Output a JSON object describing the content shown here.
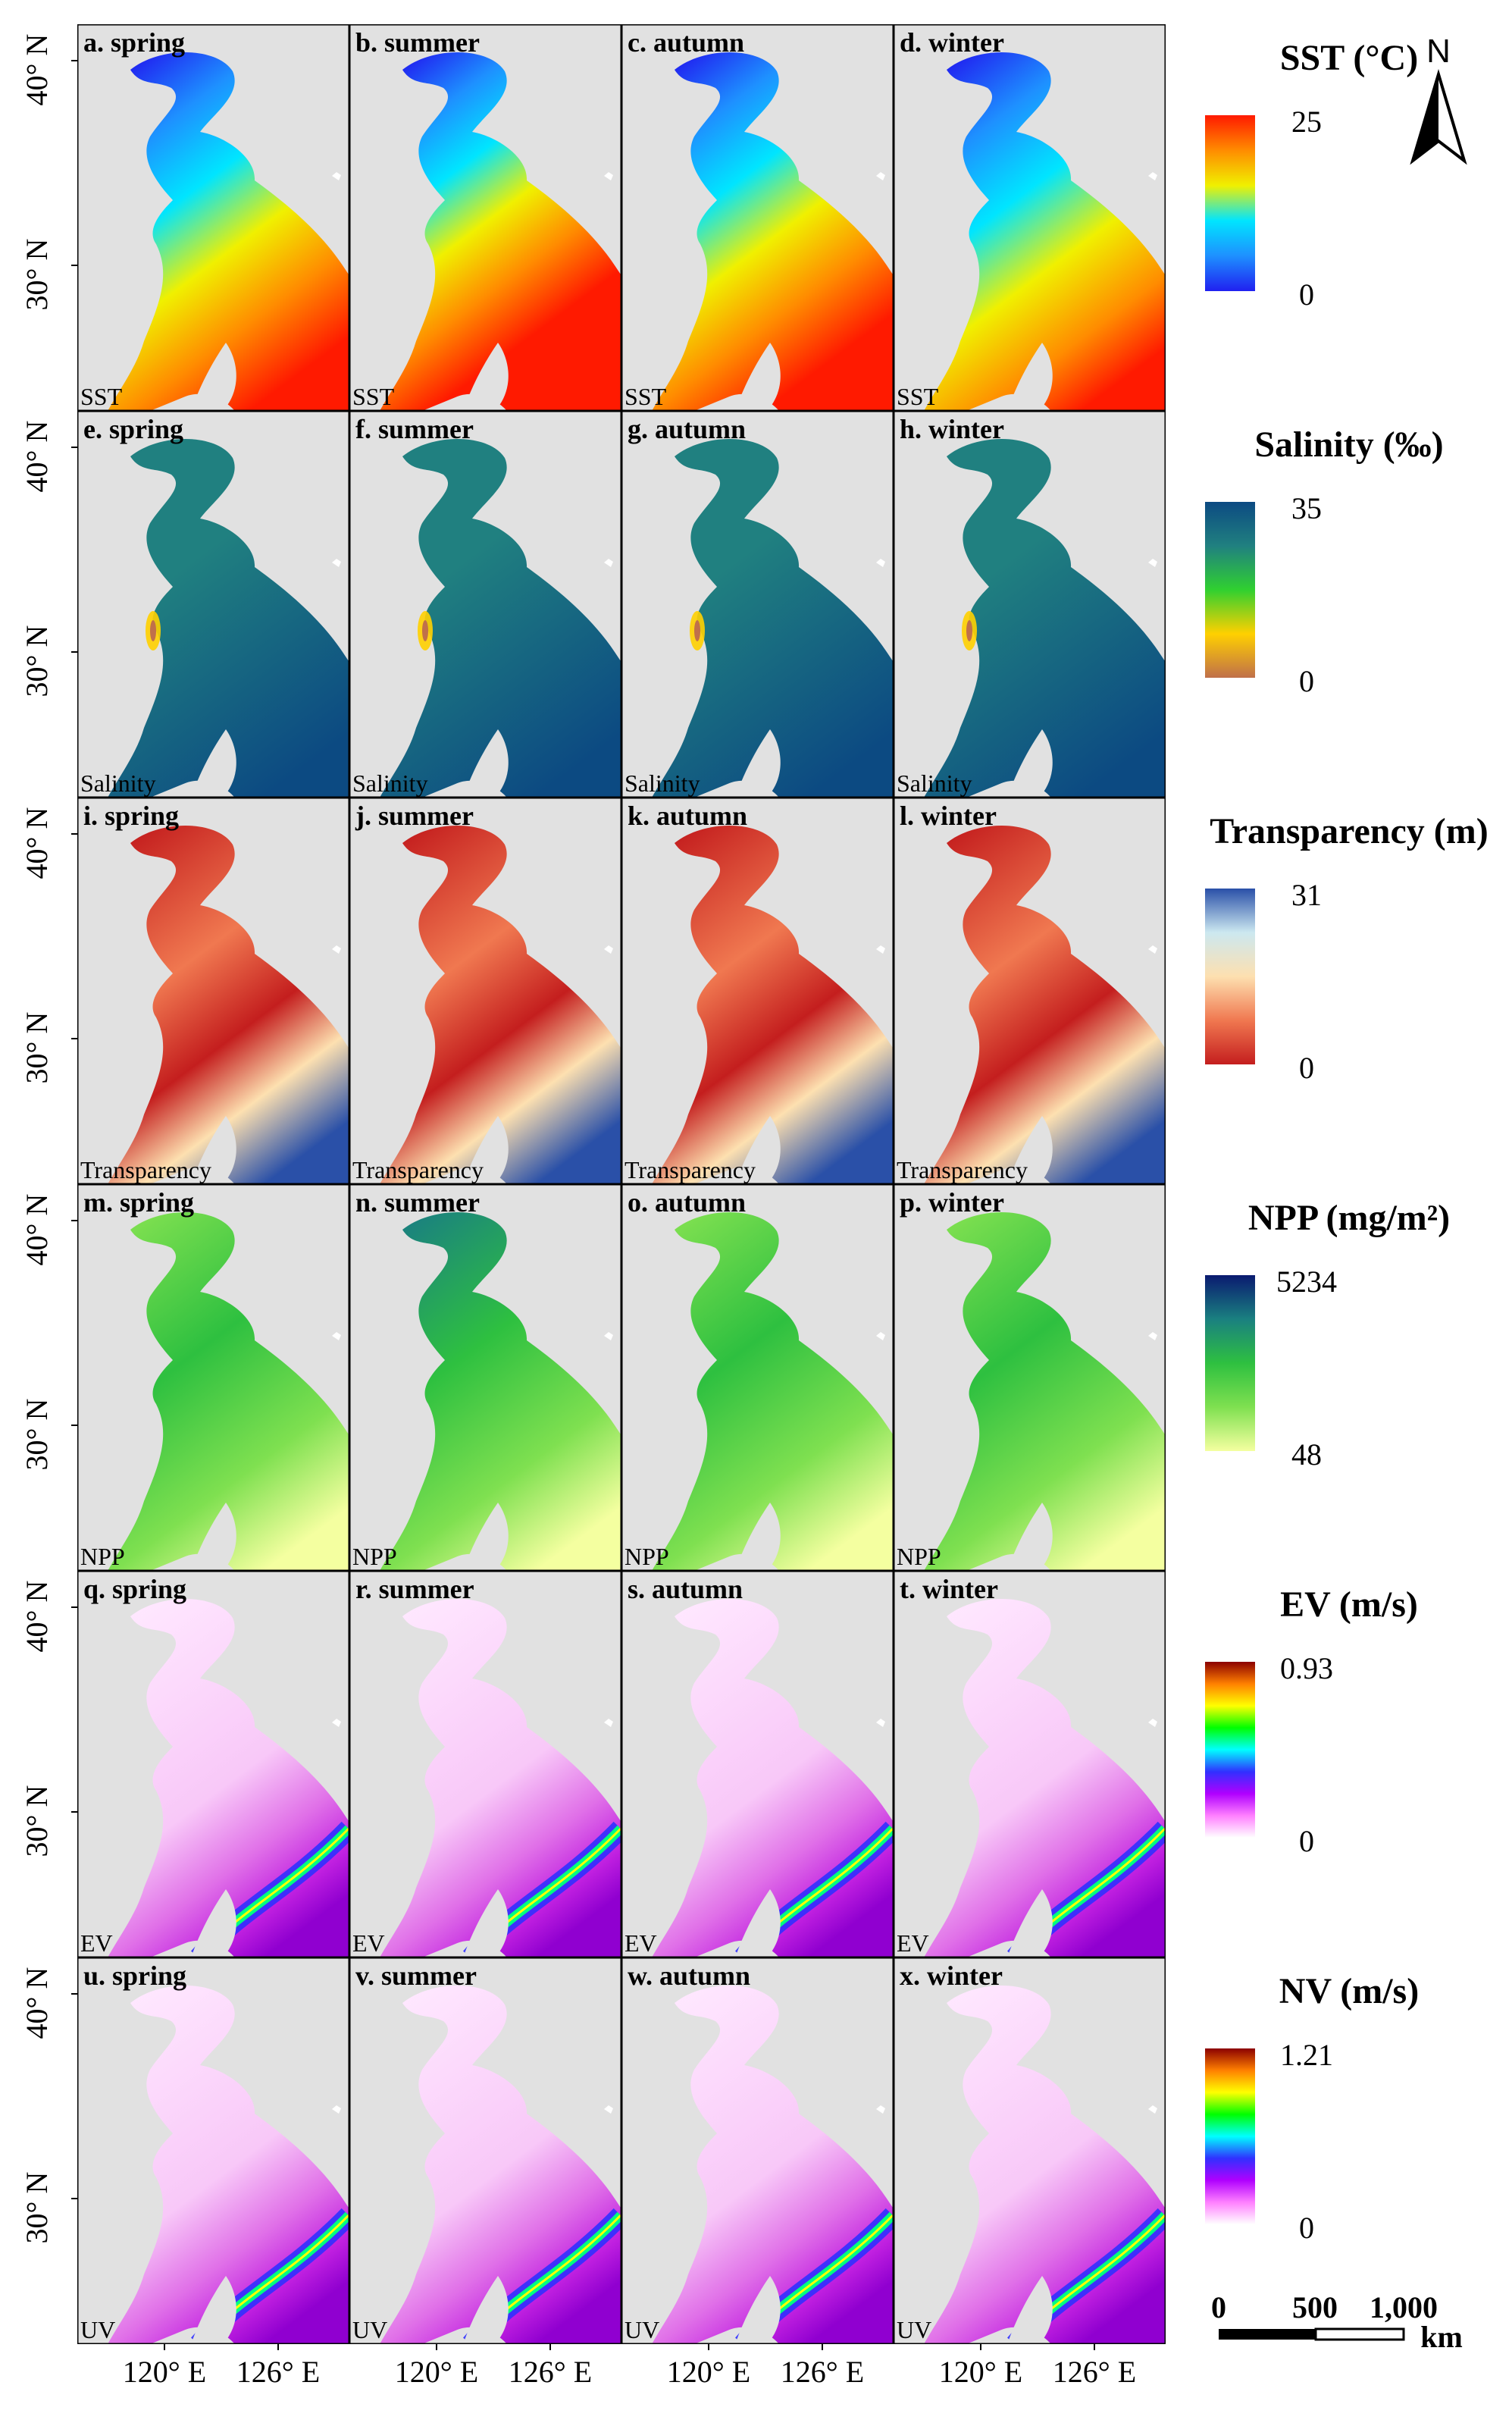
{
  "seasons": [
    "spring",
    "summer",
    "autumn",
    "winter"
  ],
  "panel_letters": [
    "a",
    "b",
    "c",
    "d",
    "e",
    "f",
    "g",
    "h",
    "i",
    "j",
    "k",
    "l",
    "m",
    "n",
    "o",
    "p",
    "q",
    "r",
    "s",
    "t",
    "u",
    "v",
    "w",
    "x"
  ],
  "variables": [
    {
      "key": "sst",
      "label": "SST",
      "legend_title": "SST (°C)",
      "max": "25",
      "min": "0",
      "colors": [
        "#2020f0",
        "#1e90ff",
        "#00e5ff",
        "#f0f000",
        "#ff8c00",
        "#ff1a00"
      ],
      "seasonal_temp": [
        0.35,
        0.65,
        0.45,
        0.2
      ]
    },
    {
      "key": "salinity",
      "label": "Salinity",
      "legend_title": "Salinity (‰)",
      "max": "35",
      "min": "0",
      "colors": [
        "#c0704a",
        "#ffd000",
        "#30d030",
        "#208080",
        "#0c4a82"
      ],
      "seasonal_temp": [
        0.5,
        0.5,
        0.5,
        0.5
      ]
    },
    {
      "key": "transparency",
      "label": "Transparency",
      "legend_title": "Transparency (m)",
      "max": "31",
      "min": "0",
      "colors": [
        "#c41e1e",
        "#f07850",
        "#fde0b0",
        "#cce8f0",
        "#2a50a8"
      ],
      "seasonal_temp": [
        0.5,
        0.5,
        0.5,
        0.5
      ]
    },
    {
      "key": "npp",
      "label": "NPP",
      "legend_title": "NPP (mg/m²)",
      "max": "5234",
      "min": "48",
      "colors": [
        "#f4ffa0",
        "#7fe050",
        "#2ec040",
        "#1a8080",
        "#0a1a70"
      ],
      "seasonal_temp": [
        0.45,
        0.6,
        0.45,
        0.3
      ]
    },
    {
      "key": "ev",
      "label": "EV",
      "legend_title": "EV (m/s)",
      "max": "0.93",
      "min": "0",
      "colors": [
        "#ffffff",
        "#ff80ff",
        "#b000ff",
        "#3030ff",
        "#00ffff",
        "#00ff00",
        "#ffff00",
        "#ff8000",
        "#8b0000"
      ],
      "seasonal_temp": [
        0.5,
        0.5,
        0.5,
        0.5
      ]
    },
    {
      "key": "uv",
      "label": "UV",
      "legend_title": "NV (m/s)",
      "max": "1.21",
      "min": "0",
      "colors": [
        "#ffffff",
        "#ff80ff",
        "#b000ff",
        "#3030ff",
        "#00ffff",
        "#00ff00",
        "#ffff00",
        "#ff8000",
        "#8b0000"
      ],
      "seasonal_temp": [
        0.5,
        0.5,
        0.5,
        0.5
      ]
    }
  ],
  "lat_labels": [
    "40° N",
    "30° N"
  ],
  "lon_labels": [
    "120° E",
    "126° E"
  ],
  "north_arrow": "N",
  "scale_bar": {
    "v0": "0",
    "v1": "500",
    "v2": "1,000",
    "unit": "km"
  },
  "colors": {
    "land": "#e1e1e1",
    "frame": "#000000"
  }
}
